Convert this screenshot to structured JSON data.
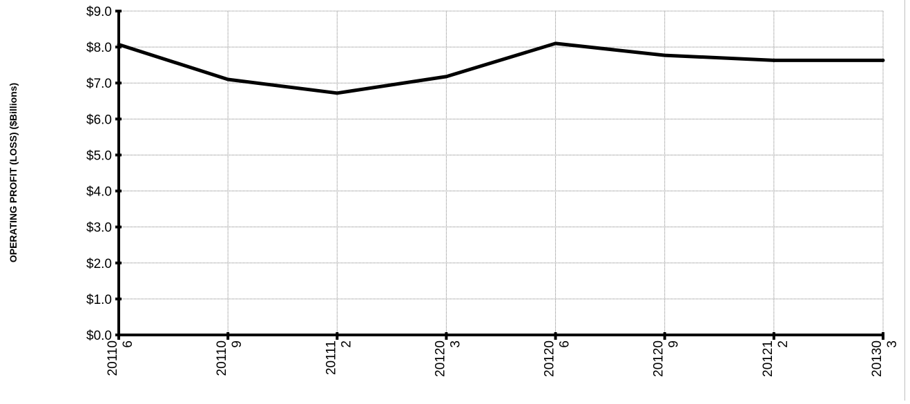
{
  "chart_data": {
    "type": "line",
    "title": "",
    "xlabel": "",
    "ylabel": "OPERATING PROFIT (LOSS) ($Billions)",
    "categories": [
      "201106",
      "201109",
      "201112",
      "201203",
      "201206",
      "201209",
      "201212",
      "201303"
    ],
    "x_tick_labels": [
      [
        "20110",
        "6"
      ],
      [
        "20110",
        "9"
      ],
      [
        "20111",
        "2"
      ],
      [
        "20120",
        "3"
      ],
      [
        "20120",
        "6"
      ],
      [
        "20120",
        "9"
      ],
      [
        "20121",
        "2"
      ],
      [
        "20130",
        "3"
      ]
    ],
    "series": [
      {
        "values": [
          8.07,
          7.1,
          6.72,
          7.18,
          8.1,
          7.77,
          7.63,
          7.63
        ]
      }
    ],
    "ylim": [
      0,
      9
    ],
    "y_ticks": [
      0,
      1,
      2,
      3,
      4,
      5,
      6,
      7,
      8,
      9
    ],
    "y_tick_labels": [
      "$0.0",
      "$1.0",
      "$2.0",
      "$3.0",
      "$4.0",
      "$5.0",
      "$6.0",
      "$7.0",
      "$8.0",
      "$9.0"
    ],
    "grid": true,
    "legend": "none",
    "colors": {
      "line": "#000000",
      "grid": "#7f7f7f",
      "axis": "#000000"
    }
  }
}
